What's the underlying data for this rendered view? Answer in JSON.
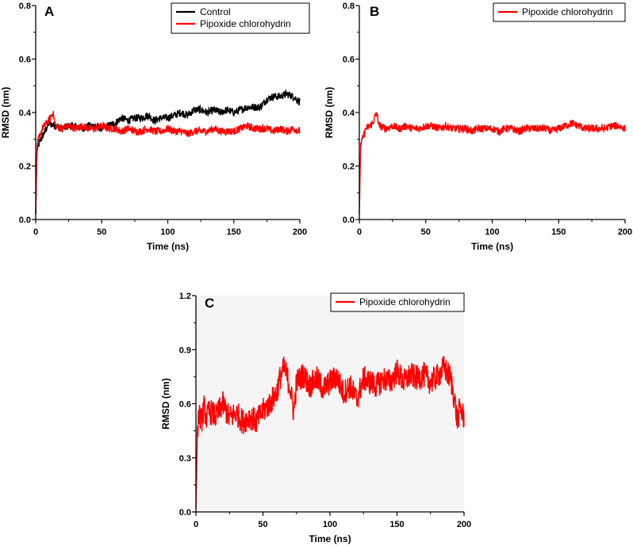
{
  "chart_data": [
    {
      "type": "line",
      "panel_label": "A",
      "xlabel": "Time (ns)",
      "ylabel": "RMSD (nm)",
      "xlim": [
        0,
        200
      ],
      "ylim": [
        0.0,
        0.8
      ],
      "xticks": [
        "0",
        "50",
        "100",
        "150",
        "200"
      ],
      "yticks": [
        "0.0",
        "0.2",
        "0.4",
        "0.6",
        "0.8"
      ],
      "legend_position": "top-right",
      "series": [
        {
          "name": "Control",
          "color": "#000000",
          "x": [
            0,
            1,
            3,
            5,
            8,
            10,
            15,
            20,
            25,
            30,
            35,
            40,
            45,
            50,
            55,
            60,
            65,
            70,
            75,
            80,
            85,
            90,
            95,
            100,
            105,
            110,
            115,
            120,
            125,
            130,
            135,
            140,
            145,
            150,
            155,
            160,
            165,
            170,
            175,
            180,
            185,
            190,
            195,
            200
          ],
          "y": [
            0.02,
            0.26,
            0.29,
            0.31,
            0.34,
            0.36,
            0.35,
            0.34,
            0.35,
            0.35,
            0.34,
            0.35,
            0.35,
            0.34,
            0.35,
            0.36,
            0.38,
            0.37,
            0.38,
            0.38,
            0.39,
            0.37,
            0.38,
            0.38,
            0.39,
            0.4,
            0.39,
            0.41,
            0.41,
            0.4,
            0.41,
            0.4,
            0.41,
            0.4,
            0.41,
            0.42,
            0.42,
            0.42,
            0.45,
            0.46,
            0.46,
            0.47,
            0.46,
            0.44
          ]
        },
        {
          "name": "Pipoxide chlorohydrin",
          "color": "#ff0000",
          "x": [
            0,
            1,
            3,
            5,
            8,
            10,
            13,
            15,
            20,
            25,
            30,
            35,
            40,
            45,
            50,
            55,
            60,
            65,
            70,
            75,
            80,
            85,
            90,
            95,
            100,
            105,
            110,
            115,
            120,
            125,
            130,
            135,
            140,
            145,
            150,
            155,
            160,
            165,
            170,
            175,
            180,
            185,
            190,
            195,
            200
          ],
          "y": [
            0.02,
            0.28,
            0.31,
            0.34,
            0.36,
            0.37,
            0.4,
            0.35,
            0.34,
            0.35,
            0.34,
            0.35,
            0.34,
            0.34,
            0.35,
            0.34,
            0.34,
            0.33,
            0.34,
            0.33,
            0.33,
            0.34,
            0.33,
            0.33,
            0.34,
            0.33,
            0.33,
            0.32,
            0.33,
            0.33,
            0.33,
            0.34,
            0.33,
            0.33,
            0.33,
            0.34,
            0.35,
            0.34,
            0.34,
            0.34,
            0.33,
            0.34,
            0.33,
            0.34,
            0.33
          ]
        }
      ]
    },
    {
      "type": "line",
      "panel_label": "B",
      "xlabel": "Time (ns)",
      "ylabel": "RMSD (nm)",
      "xlim": [
        0,
        200
      ],
      "ylim": [
        0.0,
        0.8
      ],
      "xticks": [
        "0",
        "50",
        "100",
        "150",
        "200"
      ],
      "yticks": [
        "0.0",
        "0.2",
        "0.4",
        "0.6",
        "0.8"
      ],
      "legend_position": "top-right",
      "series": [
        {
          "name": "Pipoxide chlorohydrin",
          "color": "#ff0000",
          "x": [
            0,
            1,
            3,
            5,
            8,
            10,
            13,
            15,
            20,
            25,
            30,
            35,
            40,
            45,
            50,
            55,
            60,
            65,
            70,
            75,
            80,
            85,
            90,
            95,
            100,
            105,
            110,
            115,
            120,
            125,
            130,
            135,
            140,
            145,
            150,
            155,
            160,
            165,
            170,
            175,
            180,
            185,
            190,
            195,
            200
          ],
          "y": [
            0.02,
            0.28,
            0.31,
            0.34,
            0.35,
            0.36,
            0.4,
            0.35,
            0.34,
            0.35,
            0.34,
            0.35,
            0.34,
            0.34,
            0.35,
            0.35,
            0.34,
            0.35,
            0.34,
            0.34,
            0.34,
            0.33,
            0.34,
            0.34,
            0.34,
            0.33,
            0.34,
            0.34,
            0.33,
            0.34,
            0.34,
            0.34,
            0.34,
            0.33,
            0.34,
            0.35,
            0.36,
            0.35,
            0.34,
            0.34,
            0.34,
            0.34,
            0.35,
            0.35,
            0.34
          ]
        }
      ]
    },
    {
      "type": "line",
      "panel_label": "C",
      "xlabel": "Time (ns)",
      "ylabel": "RMSD (nm)",
      "xlim": [
        0,
        200
      ],
      "ylim": [
        0.0,
        1.2
      ],
      "xticks": [
        "0",
        "50",
        "100",
        "150",
        "200"
      ],
      "yticks": [
        "0.0",
        "0.3",
        "0.6",
        "0.9",
        "1.2"
      ],
      "legend_position": "top-right",
      "series": [
        {
          "name": "Pipoxide chlorohydrin",
          "color": "#ff0000",
          "x": [
            0,
            1,
            2,
            4,
            6,
            8,
            10,
            15,
            20,
            25,
            30,
            35,
            40,
            45,
            50,
            55,
            60,
            63,
            66,
            70,
            73,
            75,
            80,
            85,
            90,
            95,
            100,
            105,
            110,
            115,
            120,
            125,
            130,
            135,
            140,
            145,
            150,
            155,
            160,
            165,
            170,
            175,
            180,
            185,
            190,
            193,
            195,
            197,
            200
          ],
          "y": [
            0.02,
            0.4,
            0.55,
            0.5,
            0.58,
            0.52,
            0.56,
            0.53,
            0.6,
            0.52,
            0.55,
            0.5,
            0.53,
            0.5,
            0.56,
            0.6,
            0.66,
            0.75,
            0.8,
            0.7,
            0.55,
            0.72,
            0.76,
            0.7,
            0.74,
            0.68,
            0.72,
            0.75,
            0.66,
            0.7,
            0.62,
            0.74,
            0.72,
            0.7,
            0.74,
            0.72,
            0.78,
            0.72,
            0.76,
            0.74,
            0.76,
            0.72,
            0.75,
            0.8,
            0.74,
            0.62,
            0.5,
            0.58,
            0.52
          ]
        }
      ]
    }
  ]
}
